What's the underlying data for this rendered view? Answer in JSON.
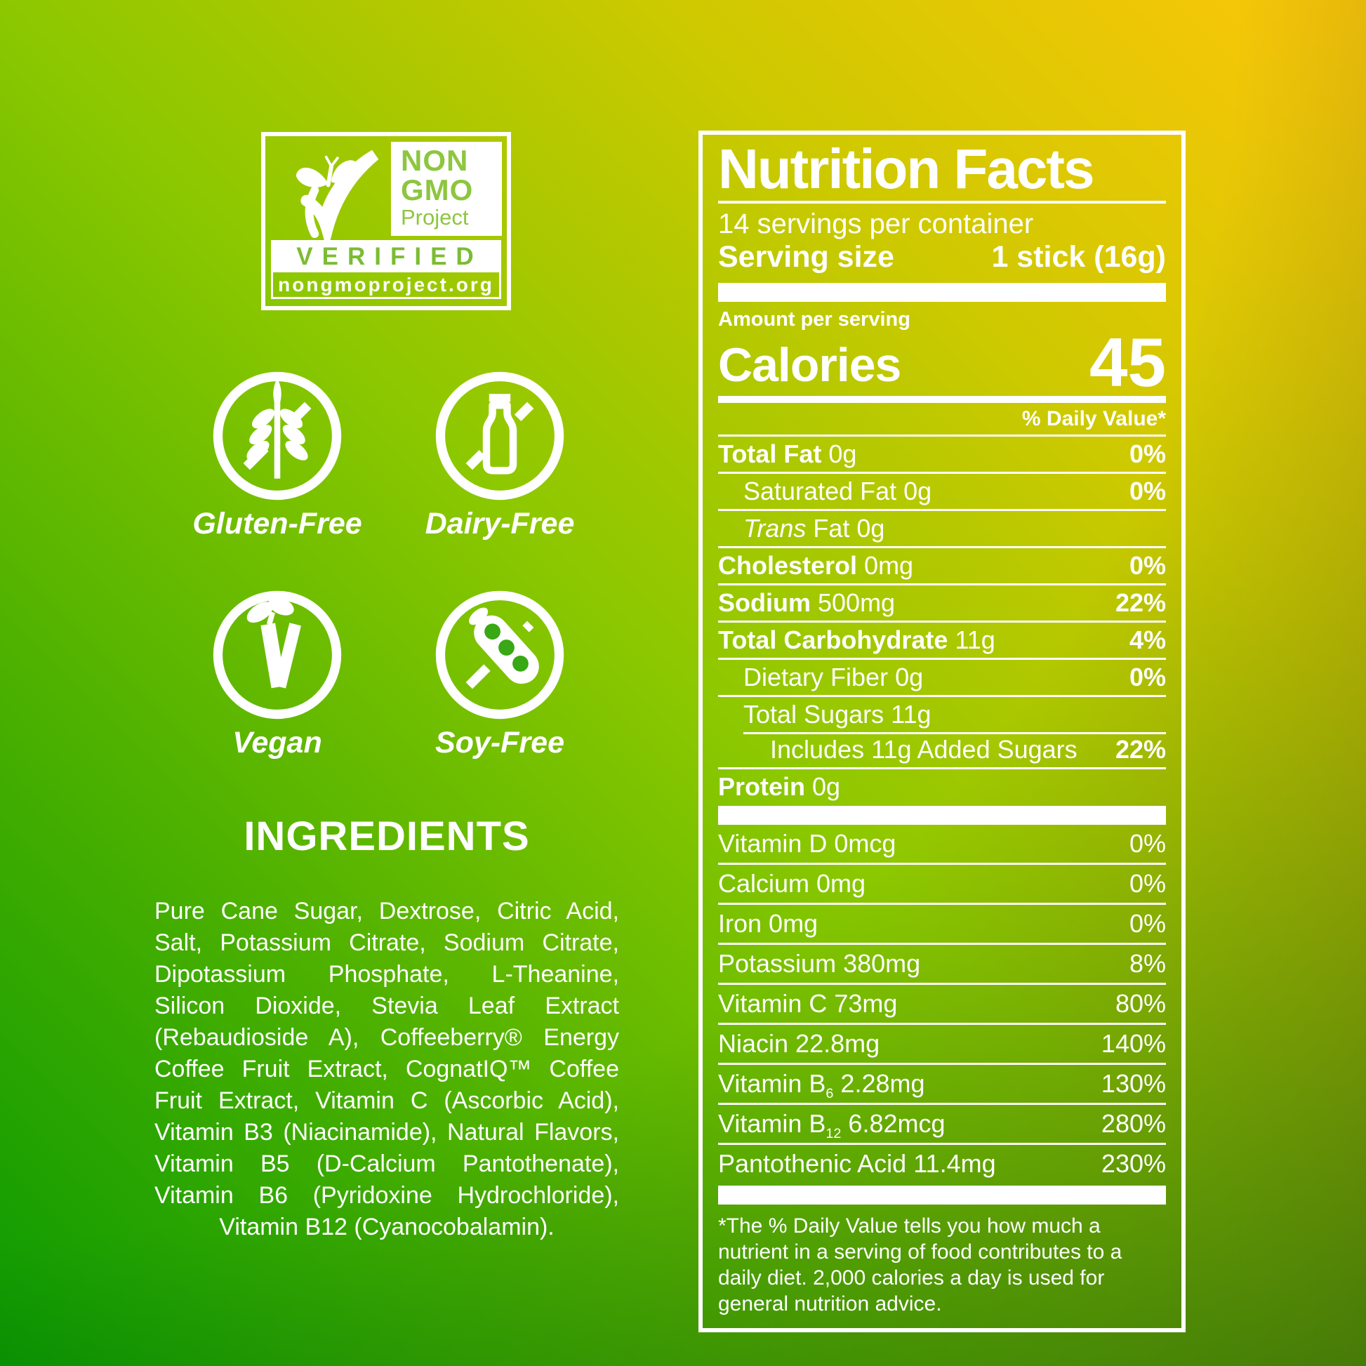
{
  "badges": {
    "non_gmo": {
      "line1": "NON",
      "line2": "GMO",
      "line3": "Project",
      "verified": "VERIFIED",
      "url": "nongmoproject.org"
    },
    "diet_icons": [
      {
        "icon": "gluten-free-icon",
        "label": "Gluten-Free"
      },
      {
        "icon": "dairy-free-icon",
        "label": "Dairy-Free"
      },
      {
        "icon": "vegan-icon",
        "label": "Vegan"
      },
      {
        "icon": "soy-free-icon",
        "label": "Soy-Free"
      }
    ]
  },
  "ingredients": {
    "title": "INGREDIENTS",
    "text": "Pure Cane Sugar, Dextrose, Citric Acid, Salt, Potassium Citrate, Sodium Citrate, Dipotassium Phosphate, L-Theanine, Silicon Dioxide, Stevia Leaf Extract (Rebaudioside A), Coffeeberry® Energy Coffee Fruit Extract, CognatIQ™ Coffee Fruit Extract, Vitamin C (Ascorbic Acid), Vitamin B3 (Niacinamide), Natural Flavors, Vitamin B5 (D-Calcium Pantothenate), Vitamin B6 (Pyridoxine Hydrochloride), Vitamin B12 (Cyanocobalamin)."
  },
  "nutrition": {
    "title": "Nutrition Facts",
    "servings_per_container": "14 servings per container",
    "serving_size_label": "Serving size",
    "serving_size_value": "1 stick (16g)",
    "amount_per_serving": "Amount per serving",
    "calories_label": "Calories",
    "calories_value": "45",
    "daily_value_header": "% Daily Value*",
    "main_rows": [
      {
        "name": "Total Fat",
        "value": "0g",
        "dv": "0%",
        "bold": true
      },
      {
        "name": "Saturated Fat",
        "value": "0g",
        "dv": "0%",
        "indent": 1
      },
      {
        "italic": "Trans",
        "name": " Fat",
        "value": "0g",
        "dv": "",
        "indent": 1
      },
      {
        "name": "Cholesterol",
        "value": "0mg",
        "dv": "0%",
        "bold": true
      },
      {
        "name": "Sodium",
        "value": "500mg",
        "dv": "22%",
        "bold": true
      },
      {
        "name": "Total Carbohydrate",
        "value": "11g",
        "dv": "4%",
        "bold": true
      },
      {
        "name": "Dietary Fiber",
        "value": "0g",
        "dv": "0%",
        "indent": 1
      },
      {
        "name": "Total Sugars",
        "value": "11g",
        "dv": "",
        "indent": 1
      },
      {
        "name": "Includes 11g Added Sugars",
        "value": "",
        "dv": "22%",
        "indent": 2,
        "inset_rule": true
      },
      {
        "name": "Protein",
        "value": "0g",
        "dv": "",
        "bold": true
      }
    ],
    "vitamin_rows": [
      {
        "name": "Vitamin D",
        "value": "0mcg",
        "dv": "0%"
      },
      {
        "name": "Calcium",
        "value": "0mg",
        "dv": "0%"
      },
      {
        "name": "Iron",
        "value": "0mg",
        "dv": "0%"
      },
      {
        "name": "Potassium",
        "value": "380mg",
        "dv": "8%"
      },
      {
        "name": "Vitamin C",
        "value": "73mg",
        "dv": "80%"
      },
      {
        "name": "Niacin",
        "value": "22.8mg",
        "dv": "140%"
      },
      {
        "name": "Vitamin B",
        "sub": "6",
        "value": "2.28mg",
        "dv": "130%"
      },
      {
        "name": "Vitamin B",
        "sub": "12",
        "value": "6.82mcg",
        "dv": "280%"
      },
      {
        "name": "Pantothenic Acid",
        "value": "11.4mg",
        "dv": "230%"
      }
    ],
    "footnote": "*The % Daily Value tells you how much a nutrient in a serving of food contributes to a daily diet. 2,000 calories a day is used for general nutrition advice."
  },
  "colors": {
    "text": "#ffffff",
    "gradient_top_right": "#fec60a",
    "gradient_mid": "#8cc800",
    "gradient_bottom_left": "#0a9a02",
    "logo_green": "#8dc63f",
    "verified_green": "#7cbc33",
    "soy_knockout_green": "#38a814"
  }
}
